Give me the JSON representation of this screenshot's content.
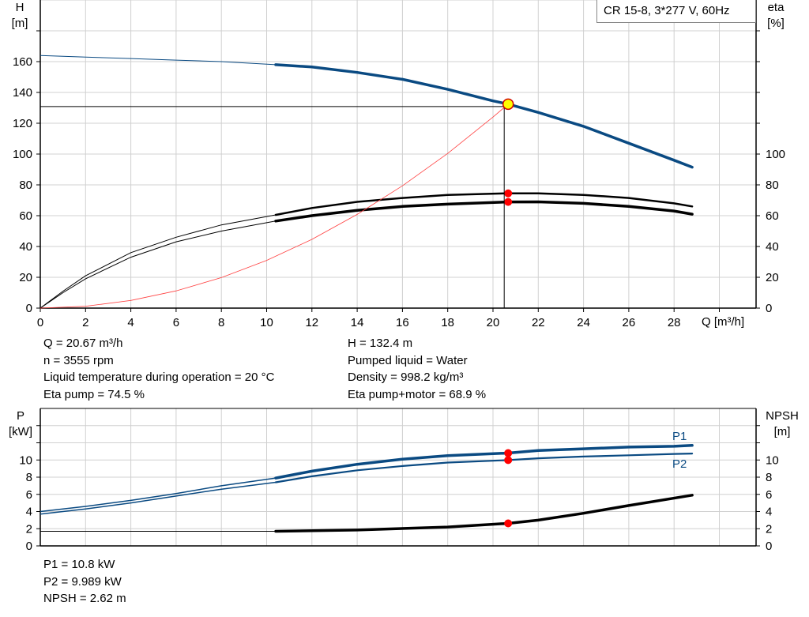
{
  "legend": "CR 15-8, 3*277 V, 60Hz",
  "info_top": {
    "left": [
      "Q = 20.67 m³/h",
      "n = 3555 rpm",
      "Liquid temperature during operation = 20 °C",
      "Eta pump = 74.5 %"
    ],
    "right": [
      "H = 132.4 m",
      "Pumped liquid = Water",
      "Density = 998.2 kg/m³",
      "Eta pump+motor = 68.9 %"
    ]
  },
  "info_bottom": [
    "P1 = 10.8 kW",
    "P2 = 9.989 kW",
    "NPSH = 2.62 m"
  ],
  "colors": {
    "head": "#0a4a82",
    "eff": "#000000",
    "system": "#ff4040",
    "power": "#0a4a82",
    "npsh": "#000000",
    "marker": "#ff0000",
    "op_point": "#ffff00",
    "grid": "#d0d0d0"
  },
  "chart_data": [
    {
      "type": "line",
      "title": "",
      "xlabel": "Q [m³/h]",
      "ylabel_left": [
        "H",
        "[m]"
      ],
      "ylabel_right": [
        "eta",
        "[%]"
      ],
      "xlim": [
        0,
        31.6
      ],
      "ylim": [
        0,
        200
      ],
      "x_ticks": [
        0,
        2,
        4,
        6,
        8,
        10,
        12,
        14,
        16,
        18,
        20,
        22,
        24,
        26,
        28
      ],
      "y_ticks_left": [
        0,
        20,
        40,
        60,
        80,
        100,
        120,
        140,
        160
      ],
      "y_ticks_right": [
        0,
        20,
        40,
        60,
        80,
        100
      ],
      "grid": true,
      "legend": "top-right",
      "operating_point": {
        "Q": 20.67,
        "H": 132.4
      },
      "series": [
        {
          "key": "head",
          "axis": "left",
          "points": [
            [
              0,
              164
            ],
            [
              2,
              163
            ],
            [
              4,
              162
            ],
            [
              6,
              161
            ],
            [
              8,
              160
            ],
            [
              10.4,
              158
            ],
            [
              12,
              156.5
            ],
            [
              14,
              153
            ],
            [
              16,
              148.5
            ],
            [
              18,
              142
            ],
            [
              20,
              134.5
            ],
            [
              20.67,
              132.4
            ],
            [
              22,
              127
            ],
            [
              24,
              118
            ],
            [
              26,
              107
            ],
            [
              28,
              96
            ],
            [
              28.8,
              91.5
            ]
          ]
        },
        {
          "key": "eta_pump",
          "axis": "right",
          "marker": 74.5,
          "points": [
            [
              0,
              0
            ],
            [
              1,
              11
            ],
            [
              2,
              21
            ],
            [
              4,
              36
            ],
            [
              6,
              46
            ],
            [
              8,
              54
            ],
            [
              10.4,
              60.5
            ],
            [
              12,
              65
            ],
            [
              14,
              69
            ],
            [
              16,
              71.5
            ],
            [
              18,
              73.5
            ],
            [
              20.67,
              74.5
            ],
            [
              22,
              74.5
            ],
            [
              24,
              73.5
            ],
            [
              26,
              71.5
            ],
            [
              28,
              68
            ],
            [
              28.8,
              66
            ]
          ]
        },
        {
          "key": "eta_pump_motor",
          "axis": "right",
          "marker": 68.9,
          "points": [
            [
              0,
              0
            ],
            [
              1,
              10
            ],
            [
              2,
              19
            ],
            [
              4,
              33
            ],
            [
              6,
              43
            ],
            [
              8,
              50
            ],
            [
              10.4,
              56.5
            ],
            [
              12,
              60
            ],
            [
              14,
              63.5
            ],
            [
              16,
              66
            ],
            [
              18,
              67.5
            ],
            [
              20.67,
              68.9
            ],
            [
              22,
              69
            ],
            [
              24,
              68
            ],
            [
              26,
              66
            ],
            [
              28,
              63
            ],
            [
              28.8,
              61
            ]
          ]
        },
        {
          "key": "system",
          "axis": "left",
          "points": [
            [
              0,
              0
            ],
            [
              2,
              1.2
            ],
            [
              4,
              5
            ],
            [
              6,
              11.2
            ],
            [
              8,
              19.8
            ],
            [
              10,
              31
            ],
            [
              12,
              44.6
            ],
            [
              14,
              60.8
            ],
            [
              16,
              79.4
            ],
            [
              18,
              100.4
            ],
            [
              20,
              124
            ],
            [
              20.67,
              132.4
            ]
          ]
        }
      ]
    },
    {
      "type": "line",
      "title": "",
      "ylabel_left": [
        "P",
        "[kW]"
      ],
      "ylabel_right": [
        "NPSH",
        "[m]"
      ],
      "xlim": [
        0,
        31.6
      ],
      "ylim": [
        0,
        16
      ],
      "y_ticks_left": [
        0,
        2,
        4,
        6,
        8,
        10
      ],
      "y_ticks_right": [
        0,
        2,
        4,
        6,
        8,
        10
      ],
      "grid": true,
      "series": [
        {
          "key": "P1",
          "name": "P1",
          "axis": "left",
          "marker": 10.8,
          "points": [
            [
              0,
              4.0
            ],
            [
              2,
              4.6
            ],
            [
              4,
              5.3
            ],
            [
              6,
              6.1
            ],
            [
              8,
              7.0
            ],
            [
              10.4,
              7.9
            ],
            [
              12,
              8.7
            ],
            [
              14,
              9.5
            ],
            [
              16,
              10.1
            ],
            [
              18,
              10.5
            ],
            [
              20.67,
              10.8
            ],
            [
              22,
              11.1
            ],
            [
              24,
              11.3
            ],
            [
              26,
              11.5
            ],
            [
              28,
              11.6
            ],
            [
              28.8,
              11.7
            ]
          ]
        },
        {
          "key": "P2",
          "name": "P2",
          "axis": "left",
          "marker": 9.989,
          "points": [
            [
              0,
              3.7
            ],
            [
              2,
              4.3
            ],
            [
              4,
              5.0
            ],
            [
              6,
              5.8
            ],
            [
              8,
              6.6
            ],
            [
              10.4,
              7.4
            ],
            [
              12,
              8.1
            ],
            [
              14,
              8.8
            ],
            [
              16,
              9.3
            ],
            [
              18,
              9.7
            ],
            [
              20.67,
              9.989
            ],
            [
              22,
              10.2
            ],
            [
              24,
              10.4
            ],
            [
              26,
              10.55
            ],
            [
              28,
              10.7
            ],
            [
              28.8,
              10.75
            ]
          ]
        },
        {
          "key": "NPSH",
          "axis": "right",
          "marker": 2.62,
          "points": [
            [
              0,
              1.7
            ],
            [
              10.4,
              1.7
            ],
            [
              14,
              1.85
            ],
            [
              18,
              2.2
            ],
            [
              20.67,
              2.62
            ],
            [
              22,
              3.0
            ],
            [
              24,
              3.8
            ],
            [
              26,
              4.7
            ],
            [
              28.8,
              5.9
            ]
          ]
        }
      ]
    }
  ]
}
